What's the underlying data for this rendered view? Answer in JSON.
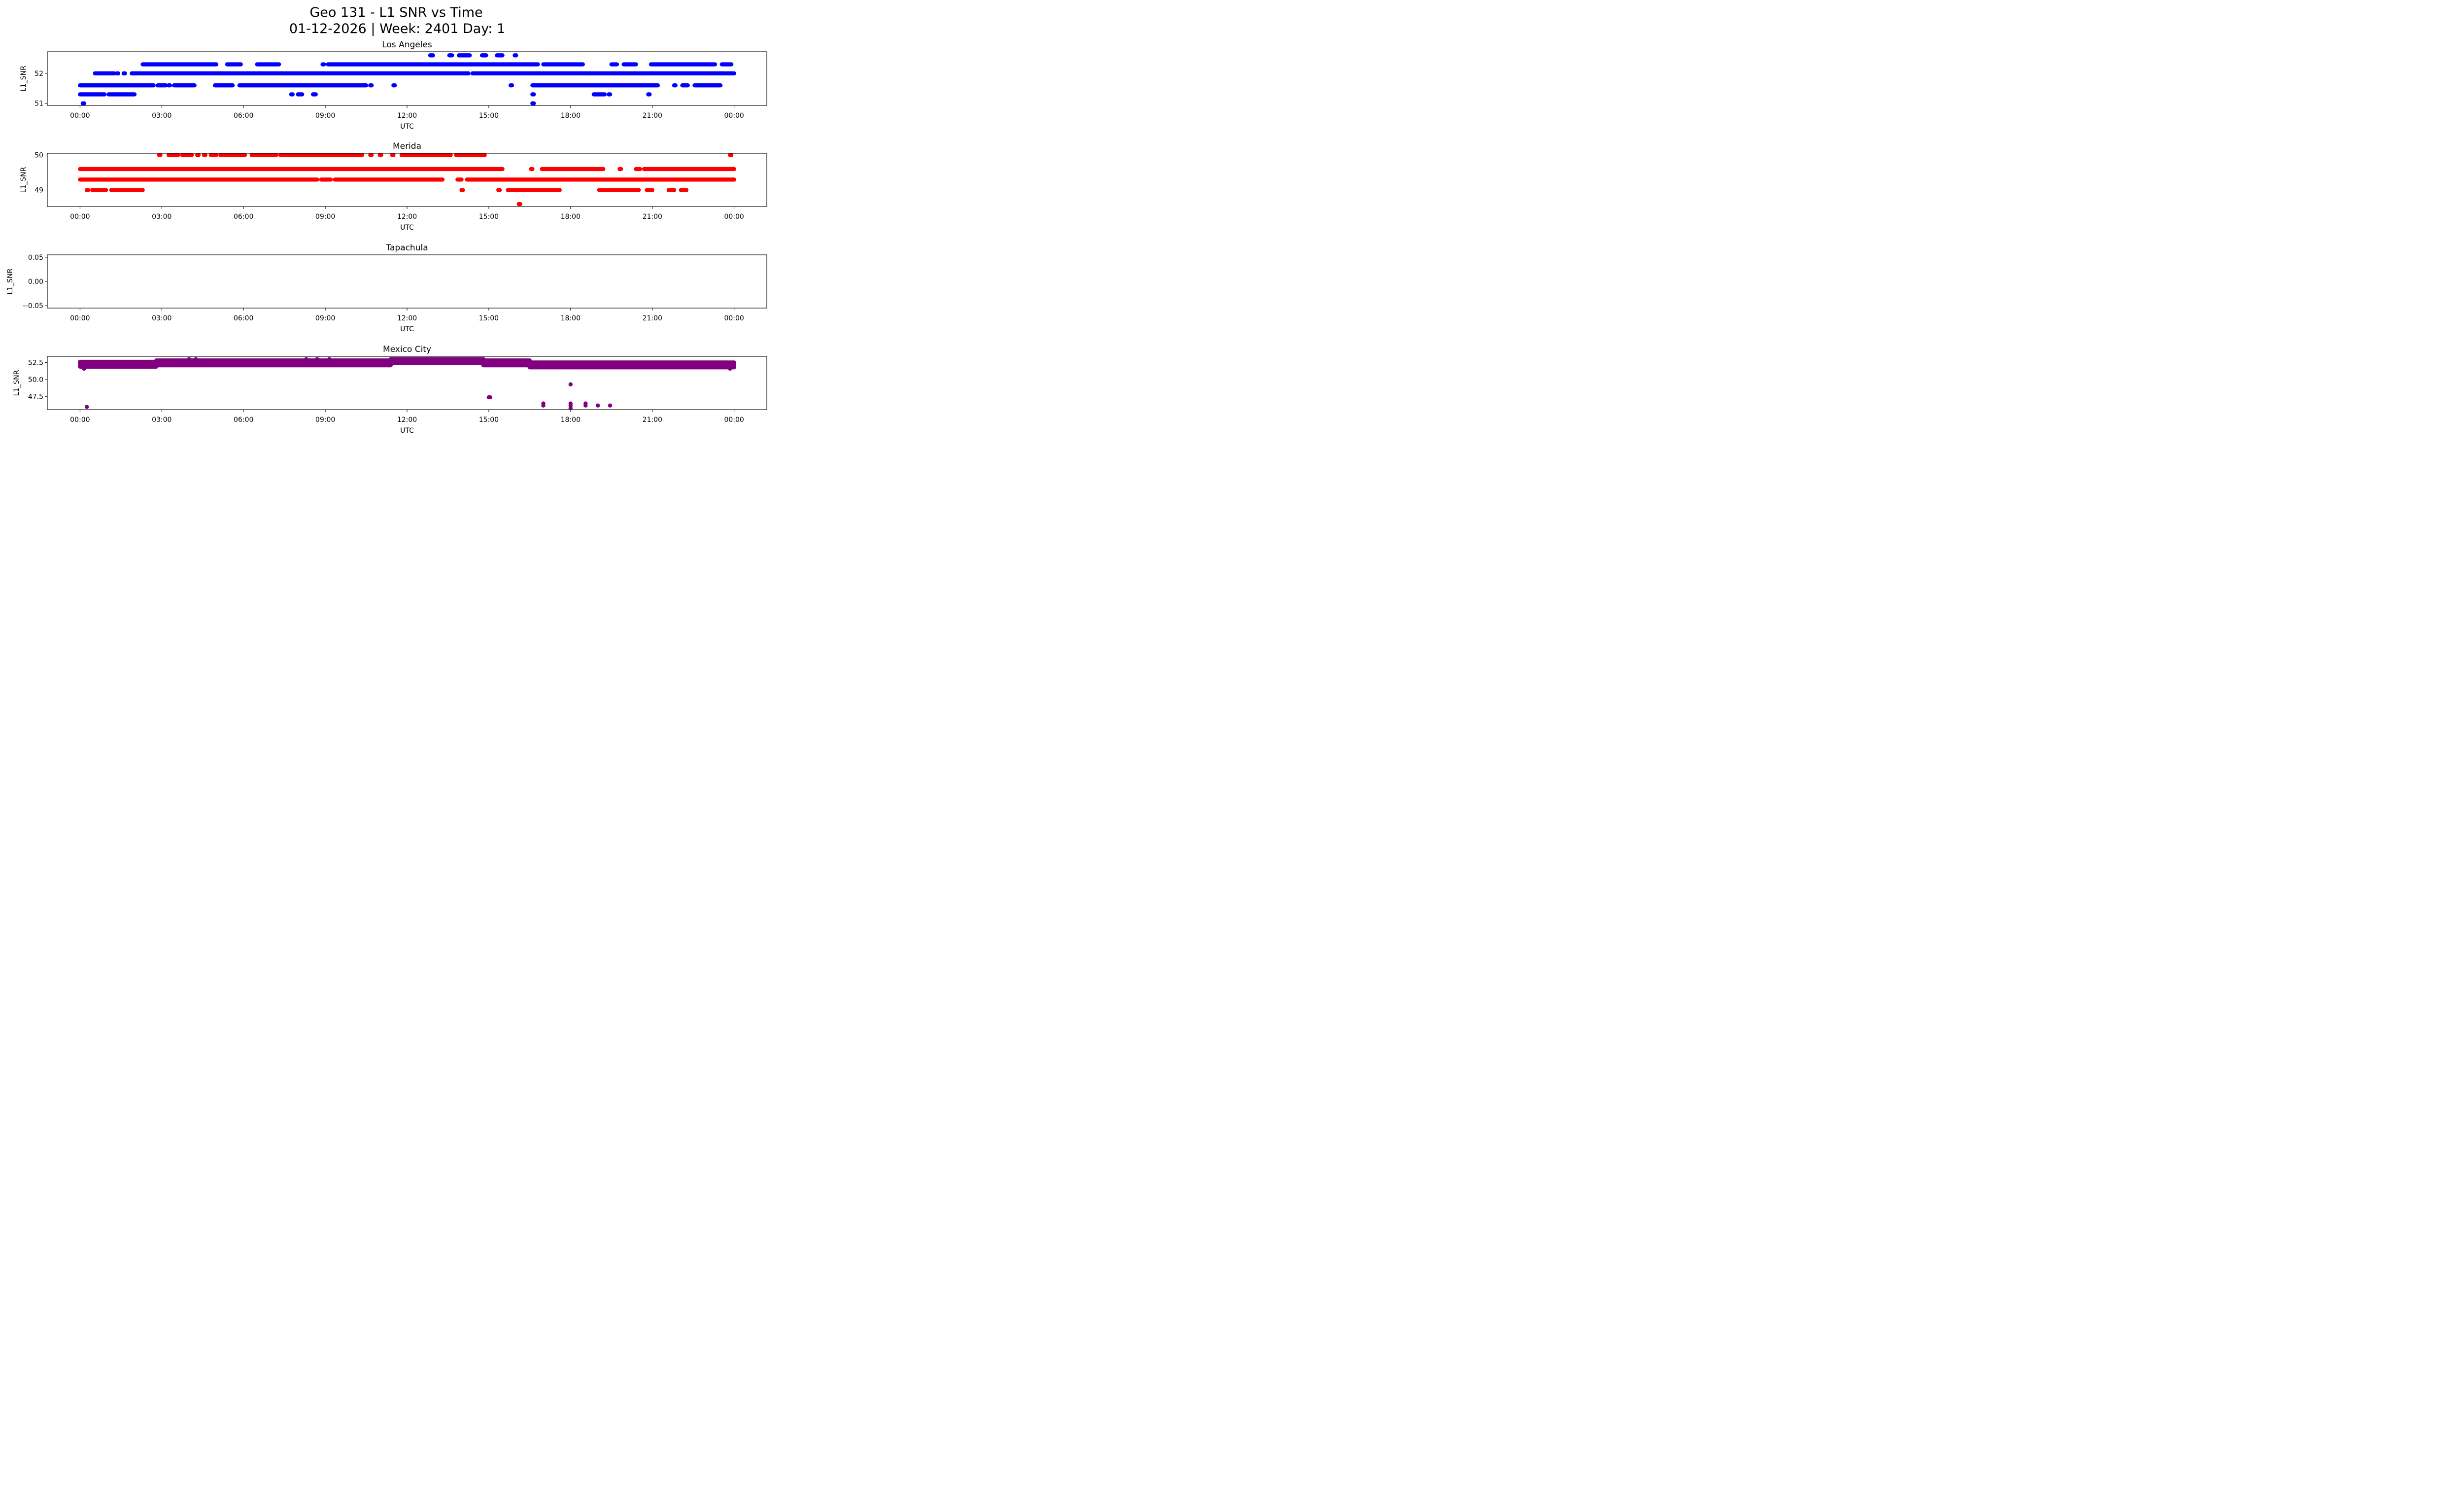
{
  "chart_data": {
    "type": "scatter",
    "title": "Geo 131 - L1 SNR vs Time",
    "subtitle": "01-12-2026 | Week: 2401 Day: 1",
    "x_unit": "hours UTC",
    "x_range": [
      -1.2,
      25.2
    ],
    "x_ticks": [
      0,
      3,
      6,
      9,
      12,
      15,
      18,
      21,
      24
    ],
    "x_tick_labels": [
      "00:00",
      "03:00",
      "06:00",
      "09:00",
      "12:00",
      "15:00",
      "18:00",
      "21:00",
      "00:00"
    ],
    "grid": false,
    "legend": "none",
    "panels": [
      {
        "title": "Los Angeles",
        "xlabel": "UTC",
        "ylabel": "L1_SNR",
        "color": "#0000ff",
        "ylim": [
          50.93,
          52.72
        ],
        "y_ticks": [
          51,
          52
        ],
        "y_tick_labels": [
          "51",
          "52"
        ],
        "segments": [
          {
            "y": 52.6,
            "ranges": [
              [
                12.85,
                12.95
              ],
              [
                13.55,
                13.65
              ],
              [
                13.9,
                14.3
              ],
              [
                14.75,
                14.9
              ],
              [
                15.3,
                15.5
              ],
              [
                15.95,
                16.0
              ]
            ]
          },
          {
            "y": 52.3,
            "ranges": [
              [
                2.3,
                5.0
              ],
              [
                5.4,
                5.9
              ],
              [
                6.5,
                7.3
              ],
              [
                8.9,
                8.95
              ],
              [
                9.1,
                16.8
              ],
              [
                17.0,
                18.45
              ],
              [
                19.5,
                19.7
              ],
              [
                19.95,
                20.4
              ],
              [
                20.95,
                23.3
              ],
              [
                23.55,
                23.9
              ]
            ]
          },
          {
            "y": 52.0,
            "ranges": [
              [
                0.55,
                1.25
              ],
              [
                1.35,
                1.4
              ],
              [
                1.6,
                1.65
              ],
              [
                1.9,
                14.25
              ],
              [
                14.4,
                24.0
              ]
            ]
          },
          {
            "y": 51.6,
            "ranges": [
              [
                0.0,
                2.7
              ],
              [
                2.85,
                3.15
              ],
              [
                3.25,
                3.3
              ],
              [
                3.45,
                4.2
              ],
              [
                4.95,
                5.6
              ],
              [
                5.85,
                10.5
              ],
              [
                10.65,
                10.7
              ],
              [
                11.5,
                11.55
              ],
              [
                15.8,
                15.85
              ],
              [
                16.6,
                21.2
              ],
              [
                21.8,
                21.85
              ],
              [
                22.1,
                22.3
              ],
              [
                22.55,
                23.5
              ]
            ]
          },
          {
            "y": 51.3,
            "ranges": [
              [
                0.0,
                0.9
              ],
              [
                1.05,
                2.0
              ],
              [
                7.75,
                7.8
              ],
              [
                8.0,
                8.15
              ],
              [
                8.55,
                8.65
              ],
              [
                16.6,
                16.65
              ],
              [
                18.85,
                19.25
              ],
              [
                19.4,
                19.45
              ],
              [
                20.85,
                20.9
              ]
            ]
          },
          {
            "y": 51.0,
            "ranges": [
              [
                0.1,
                0.15
              ],
              [
                16.6,
                16.65
              ]
            ]
          }
        ]
      },
      {
        "title": "Merida",
        "xlabel": "UTC",
        "ylabel": "L1_SNR",
        "color": "#ff0000",
        "ylim": [
          48.53,
          50.05
        ],
        "y_ticks": [
          49,
          50
        ],
        "y_tick_labels": [
          "49",
          "50"
        ],
        "segments": [
          {
            "y": 50.0,
            "ranges": [
              [
                2.9,
                2.95
              ],
              [
                3.25,
                3.6
              ],
              [
                3.75,
                4.1
              ],
              [
                4.3,
                4.35
              ],
              [
                4.55,
                4.6
              ],
              [
                4.8,
                5.0
              ],
              [
                5.15,
                6.05
              ],
              [
                6.3,
                7.2
              ],
              [
                7.35,
                7.45
              ],
              [
                7.55,
                10.35
              ],
              [
                10.65,
                10.7
              ],
              [
                11.0,
                11.05
              ],
              [
                11.45,
                11.5
              ],
              [
                11.8,
                13.6
              ],
              [
                13.8,
                14.85
              ],
              [
                23.85,
                23.9
              ]
            ]
          },
          {
            "y": 49.6,
            "ranges": [
              [
                0.0,
                15.5
              ],
              [
                16.55,
                16.6
              ],
              [
                16.95,
                19.2
              ],
              [
                19.8,
                19.85
              ],
              [
                20.4,
                20.55
              ],
              [
                20.7,
                24.0
              ]
            ]
          },
          {
            "y": 49.3,
            "ranges": [
              [
                0.0,
                8.7
              ],
              [
                8.85,
                9.2
              ],
              [
                9.35,
                13.3
              ],
              [
                13.85,
                14.0
              ],
              [
                14.2,
                24.0
              ]
            ]
          },
          {
            "y": 49.0,
            "ranges": [
              [
                0.25,
                0.3
              ],
              [
                0.45,
                0.95
              ],
              [
                1.15,
                2.3
              ],
              [
                14.0,
                14.05
              ],
              [
                15.35,
                15.4
              ],
              [
                15.7,
                17.6
              ],
              [
                19.05,
                20.5
              ],
              [
                20.8,
                21.0
              ],
              [
                21.6,
                21.8
              ],
              [
                22.05,
                22.25
              ]
            ]
          },
          {
            "y": 48.6,
            "ranges": [
              [
                16.1,
                16.15
              ]
            ]
          }
        ]
      },
      {
        "title": "Tapachula",
        "xlabel": "UTC",
        "ylabel": "L1_SNR",
        "color": "#0000ff",
        "ylim": [
          -0.055,
          0.055
        ],
        "y_ticks": [
          -0.05,
          0.0,
          0.05
        ],
        "y_tick_labels": [
          "−0.05",
          "0.00",
          "0.05"
        ],
        "segments": []
      },
      {
        "title": "Mexico City",
        "xlabel": "UTC",
        "ylabel": "L1_SNR",
        "color": "#800080",
        "ylim": [
          45.6,
          53.4
        ],
        "y_ticks": [
          47.5,
          50.0,
          52.5
        ],
        "y_tick_labels": [
          "47.5",
          "50.0",
          "52.5"
        ],
        "band_ranges": [
          {
            "x": [
              0.0,
              2.8
            ],
            "y": [
              51.9,
              52.6
            ]
          },
          {
            "x": [
              2.8,
              11.4
            ],
            "y": [
              52.1,
              52.8
            ]
          },
          {
            "x": [
              11.4,
              14.8
            ],
            "y": [
              52.4,
              53.0
            ]
          },
          {
            "x": [
              14.8,
              16.5
            ],
            "y": [
              52.1,
              52.8
            ]
          },
          {
            "x": [
              16.5,
              24.0
            ],
            "y": [
              51.8,
              52.5
            ]
          }
        ],
        "outliers": [
          {
            "x": 0.25,
            "y": 46.0
          },
          {
            "x": 0.15,
            "y": 51.6
          },
          {
            "x": 4.0,
            "y": 53.0
          },
          {
            "x": 4.25,
            "y": 53.0
          },
          {
            "x": 8.3,
            "y": 53.0
          },
          {
            "x": 8.7,
            "y": 53.0
          },
          {
            "x": 9.15,
            "y": 53.0
          },
          {
            "x": 15.0,
            "y": 47.4
          },
          {
            "x": 15.05,
            "y": 47.4
          },
          {
            "x": 17.0,
            "y": 46.2
          },
          {
            "x": 17.0,
            "y": 46.5
          },
          {
            "x": 18.0,
            "y": 49.3
          },
          {
            "x": 18.0,
            "y": 46.5
          },
          {
            "x": 18.0,
            "y": 46.2
          },
          {
            "x": 18.0,
            "y": 45.8
          },
          {
            "x": 18.55,
            "y": 46.5
          },
          {
            "x": 18.55,
            "y": 46.2
          },
          {
            "x": 19.0,
            "y": 46.2
          },
          {
            "x": 19.45,
            "y": 46.2
          },
          {
            "x": 23.85,
            "y": 51.6
          }
        ]
      }
    ]
  }
}
